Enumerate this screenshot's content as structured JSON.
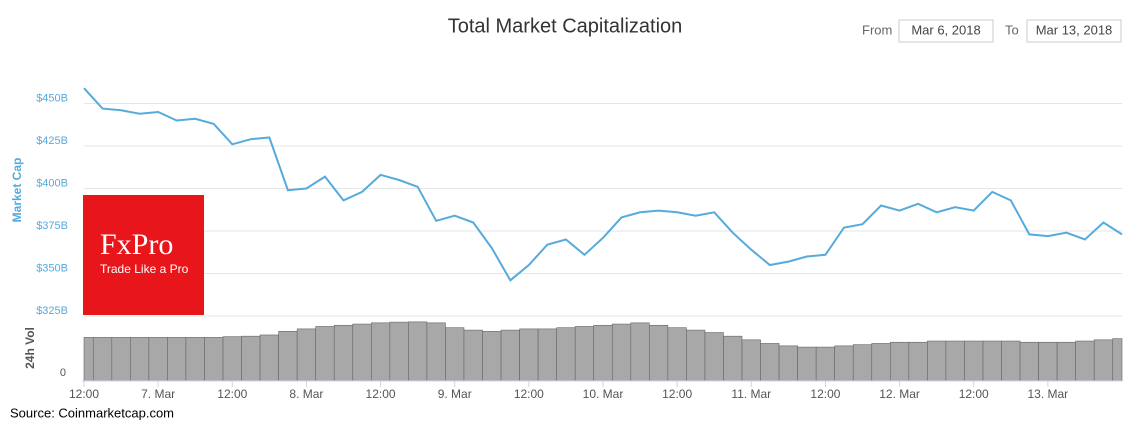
{
  "chart_data": {
    "type": "line",
    "title": "Total Market Capitalization",
    "range": {
      "from_label": "From",
      "from": "Mar 6, 2018",
      "to_label": "To",
      "to": "Mar 13, 2018"
    },
    "ylabel": "Market Cap",
    "volume_label": "24h Vol",
    "source": "Source: Coinmarketcap.com",
    "logo": {
      "name": "FxPro",
      "tagline": "Trade Like a Pro"
    },
    "x": [
      0,
      3,
      6,
      9,
      12,
      15,
      18,
      21,
      24,
      27,
      30,
      33,
      36,
      39,
      42,
      45,
      48,
      51,
      54,
      57,
      60,
      63,
      66,
      69,
      72,
      75,
      78,
      81,
      84,
      87,
      90,
      93,
      96,
      99,
      102,
      105,
      108,
      111,
      114,
      117,
      120,
      123,
      126,
      129,
      132,
      135,
      138,
      141,
      144,
      147,
      150,
      153,
      156,
      159,
      162,
      165,
      168
    ],
    "xlim": [
      0,
      168
    ],
    "xticks": [
      {
        "value": 0,
        "label": "12:00"
      },
      {
        "value": 12,
        "label": "7. Mar"
      },
      {
        "value": 24,
        "label": "12:00"
      },
      {
        "value": 36,
        "label": "8. Mar"
      },
      {
        "value": 48,
        "label": "12:00"
      },
      {
        "value": 60,
        "label": "9. Mar"
      },
      {
        "value": 72,
        "label": "12:00"
      },
      {
        "value": 84,
        "label": "10. Mar"
      },
      {
        "value": 96,
        "label": "12:00"
      },
      {
        "value": 108,
        "label": "11. Mar"
      },
      {
        "value": 120,
        "label": "12:00"
      },
      {
        "value": 132,
        "label": "12. Mar"
      },
      {
        "value": 144,
        "label": "12:00"
      },
      {
        "value": 156,
        "label": "13. Mar"
      }
    ],
    "ylim": [
      325,
      475
    ],
    "yticks": [
      {
        "value": 325,
        "label": "$325B"
      },
      {
        "value": 350,
        "label": "$350B"
      },
      {
        "value": 375,
        "label": "$375B"
      },
      {
        "value": 400,
        "label": "$400B"
      },
      {
        "value": 425,
        "label": "$425B"
      },
      {
        "value": 450,
        "label": "$450B"
      }
    ],
    "grid": true,
    "series": [
      {
        "name": "Market Cap",
        "color": "#55abdc",
        "values": [
          459,
          447,
          446,
          444,
          445,
          440,
          441,
          438,
          426,
          429,
          430,
          399,
          400,
          407,
          393,
          398,
          408,
          405,
          401,
          381,
          384,
          380,
          365,
          346,
          355,
          367,
          370,
          361,
          371,
          383,
          386,
          387,
          386,
          384,
          386,
          374,
          364,
          355,
          357,
          360,
          361,
          377,
          379,
          390,
          387,
          391,
          386,
          389,
          387,
          398,
          393,
          373,
          372,
          374,
          370,
          380,
          373
        ]
      },
      {
        "name": "24h Vol",
        "color": "#a8a8a8",
        "axis": "y2",
        "values": [
          18,
          18,
          18,
          18,
          18,
          18,
          18,
          18,
          18.3,
          18.5,
          19,
          20.5,
          21.5,
          22.5,
          23,
          23.5,
          24,
          24.3,
          24.4,
          24,
          22,
          21,
          20.5,
          21,
          21.5,
          21.5,
          22,
          22.5,
          23,
          23.5,
          24,
          23,
          22,
          21,
          20,
          18.5,
          17,
          15.5,
          14.5,
          14,
          14,
          14.5,
          15,
          15.5,
          16,
          16,
          16.5,
          16.5,
          16.5,
          16.5,
          16.5,
          16,
          16,
          16,
          16.5,
          17,
          17.5
        ]
      }
    ],
    "y2lim": [
      0,
      26
    ],
    "y2ticks": [
      0
    ]
  }
}
